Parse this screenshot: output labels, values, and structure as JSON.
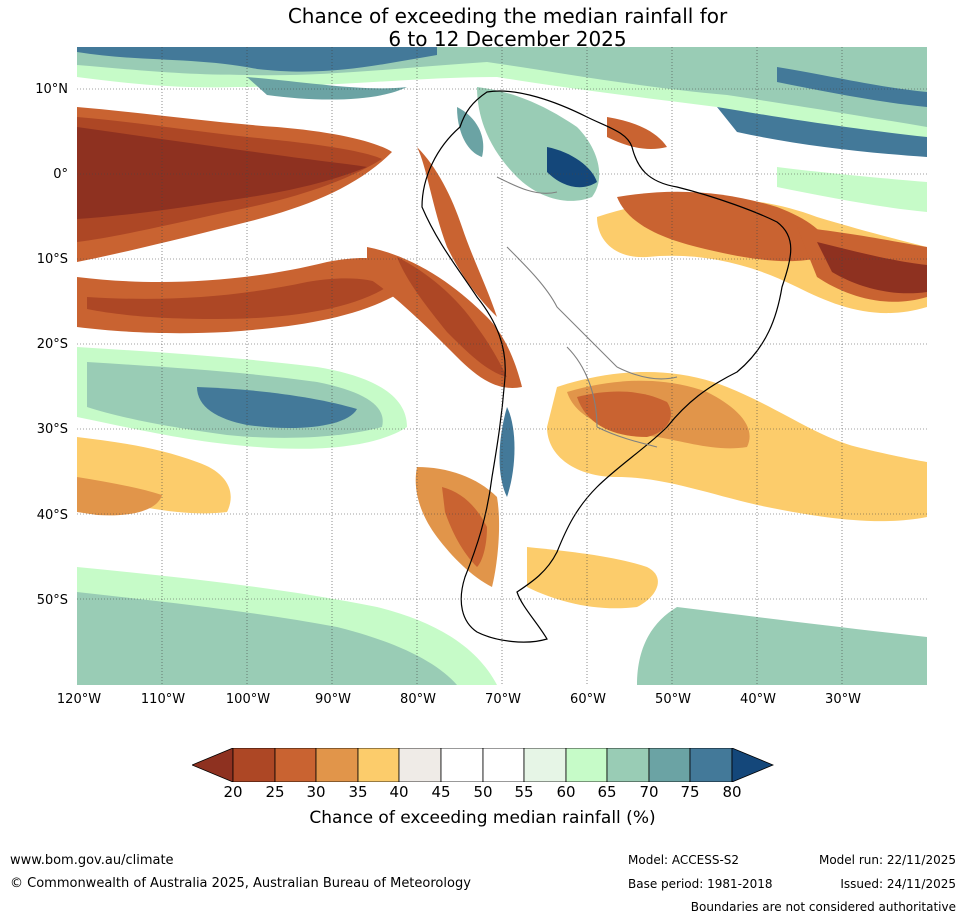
{
  "title": {
    "line1": "Chance of exceeding the median rainfall for",
    "line2": "6 to 12 December 2025"
  },
  "map": {
    "lat_labels": [
      "10°N",
      "0°",
      "10°S",
      "20°S",
      "30°S",
      "40°S",
      "50°S"
    ],
    "lon_labels": [
      "120°W",
      "110°W",
      "100°W",
      "90°W",
      "80°W",
      "70°W",
      "60°W",
      "50°W",
      "40°W",
      "30°W"
    ]
  },
  "colorbar": {
    "ticks": [
      "20",
      "25",
      "30",
      "35",
      "40",
      "45",
      "50",
      "55",
      "60",
      "65",
      "70",
      "75",
      "80"
    ],
    "colors": [
      "#8e3120",
      "#ad4725",
      "#c96331",
      "#e1954a",
      "#fccc6b",
      "#efebe7",
      "#ffffff",
      "#ffffff",
      "#e6f5e6",
      "#c6fbc8",
      "#99ccb5",
      "#6ba3a4",
      "#437999",
      "#14477a"
    ],
    "label": "Chance of exceeding median rainfall (%)"
  },
  "footer": {
    "website": "www.bom.gov.au/climate",
    "copyright": "© Commonwealth of Australia 2025, Australian Bureau of Meteorology",
    "model": "Model: ACCESS-S2",
    "base_period": "Base period: 1981-2018",
    "model_run": "Model run: 22/11/2025",
    "issued": "Issued: 24/11/2025",
    "disclaimer": "Boundaries are not considered authoritative"
  }
}
